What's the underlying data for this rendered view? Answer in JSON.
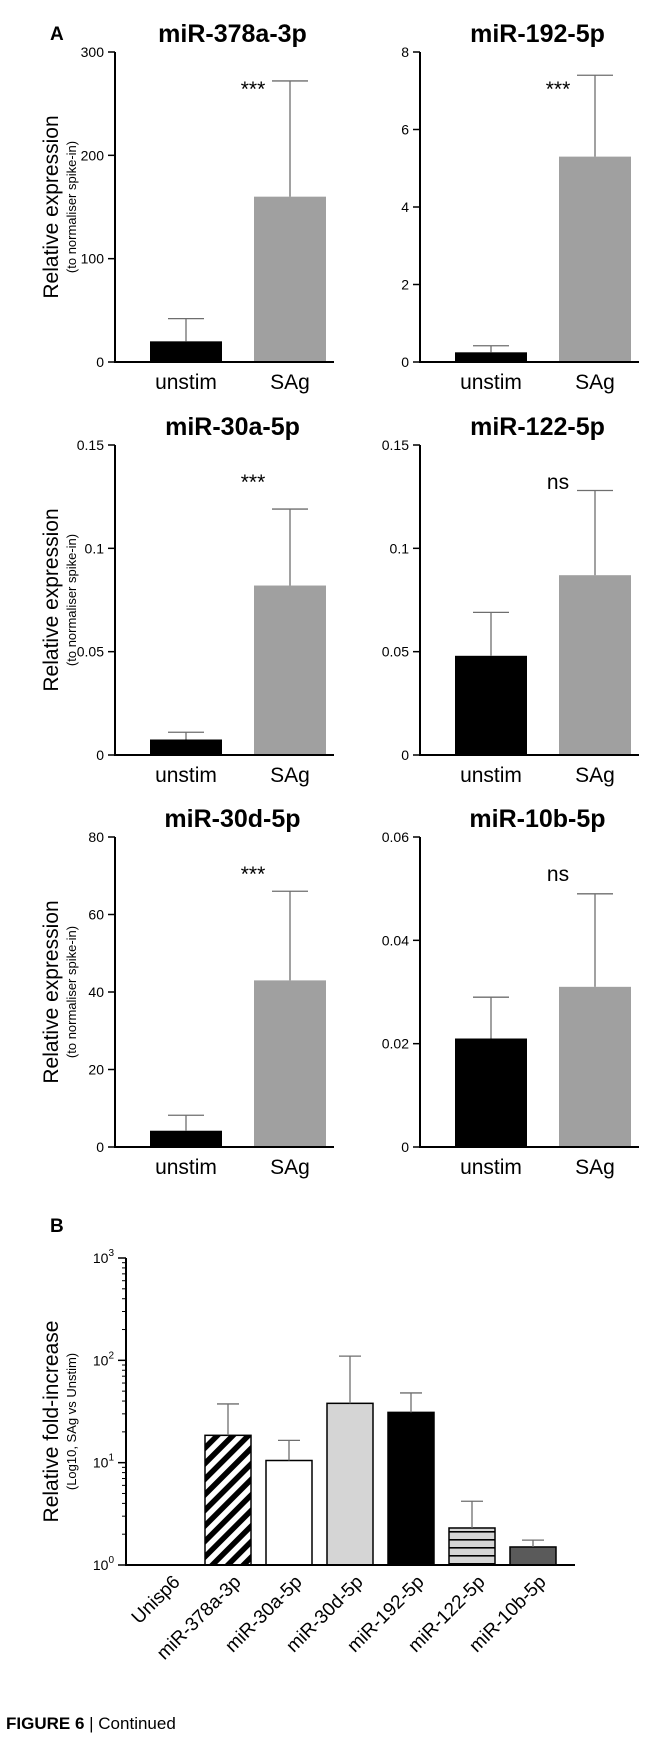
{
  "figure_caption": {
    "number": "FIGURE 6",
    "separator": " | ",
    "suffix": "Continued"
  },
  "panel_labels": {
    "a": "A",
    "b": "B"
  },
  "colors": {
    "unstim": "#000000",
    "sag": "#a0a0a0",
    "axis": "#000000",
    "error": "#6e6e6e",
    "b_light": "#d5d5d5",
    "b_dark": "#5a5a5a",
    "b_hatch": "#000000"
  },
  "panel_a_ylabel": {
    "main": "Relative expression",
    "sub": "(to normaliser spike-in)"
  },
  "panel_b_ylabel": {
    "main": "Relative fold-increase",
    "sub": "(Log10, SAg vs Unstim)"
  },
  "chart_data": [
    {
      "id": "miR-378a-3p",
      "type": "bar",
      "title": "miR-378a-3p",
      "categories": [
        "unstim",
        "SAg"
      ],
      "values": [
        20,
        160
      ],
      "errors": [
        22,
        112
      ],
      "ylim": [
        0,
        300
      ],
      "yticks": [
        "0",
        "100",
        "200",
        "300"
      ],
      "ytick_values": [
        0,
        100,
        200,
        300
      ],
      "annotation": "***"
    },
    {
      "id": "miR-192-5p",
      "type": "bar",
      "title": "miR-192-5p",
      "categories": [
        "unstim",
        "SAg"
      ],
      "values": [
        0.25,
        5.3
      ],
      "errors": [
        0.17,
        2.1
      ],
      "ylim": [
        0,
        8
      ],
      "yticks": [
        "0",
        "2",
        "4",
        "6",
        "8"
      ],
      "ytick_values": [
        0,
        2,
        4,
        6,
        8
      ],
      "annotation": "***"
    },
    {
      "id": "miR-30a-5p",
      "type": "bar",
      "title": "miR-30a-5p",
      "categories": [
        "unstim",
        "SAg"
      ],
      "values": [
        0.0075,
        0.082
      ],
      "errors": [
        0.0035,
        0.037
      ],
      "ylim": [
        0,
        0.15
      ],
      "yticks": [
        "0",
        "0.05",
        "0.1",
        "0.15"
      ],
      "ytick_values": [
        0,
        0.05,
        0.1,
        0.15
      ],
      "annotation": "***"
    },
    {
      "id": "miR-122-5p",
      "type": "bar",
      "title": "miR-122-5p",
      "categories": [
        "unstim",
        "SAg"
      ],
      "values": [
        0.048,
        0.087
      ],
      "errors": [
        0.021,
        0.041
      ],
      "ylim": [
        0,
        0.15
      ],
      "yticks": [
        "0",
        "0.05",
        "0.1",
        "0.15"
      ],
      "ytick_values": [
        0,
        0.05,
        0.1,
        0.15
      ],
      "annotation": "ns"
    },
    {
      "id": "miR-30d-5p",
      "type": "bar",
      "title": "miR-30d-5p",
      "categories": [
        "unstim",
        "SAg"
      ],
      "values": [
        4.2,
        43
      ],
      "errors": [
        4,
        23
      ],
      "ylim": [
        0,
        80
      ],
      "yticks": [
        "0",
        "20",
        "40",
        "60",
        "80"
      ],
      "ytick_values": [
        0,
        20,
        40,
        60,
        80
      ],
      "annotation": "***"
    },
    {
      "id": "miR-10b-5p",
      "type": "bar",
      "title": "miR-10b-5p",
      "categories": [
        "unstim",
        "SAg"
      ],
      "values": [
        0.021,
        0.031
      ],
      "errors": [
        0.008,
        0.018
      ],
      "ylim": [
        0,
        0.06
      ],
      "yticks": [
        "0",
        "0.02",
        "0.04",
        "0.06"
      ],
      "ytick_values": [
        0,
        0.02,
        0.04,
        0.06
      ],
      "annotation": "ns"
    },
    {
      "id": "fold-increase",
      "type": "bar",
      "yscale": "log",
      "categories": [
        "Unisp6",
        "miR-378a-3p",
        "miR-30a-5p",
        "miR-30d-5p",
        "miR-192-5p",
        "miR-122-5p",
        "miR-10b-5p"
      ],
      "values": [
        1,
        18.5,
        10.5,
        38,
        31,
        2.3,
        1.5
      ],
      "errors": [
        0,
        19,
        6,
        72,
        17,
        1.9,
        0.25
      ],
      "patterns": [
        "none",
        "diagonal-hatch",
        "white",
        "light-gray",
        "black",
        "horizontal-lines",
        "dark-gray"
      ],
      "ylim": [
        1,
        1000
      ],
      "ytick_values": [
        1,
        10,
        100,
        1000
      ],
      "yticks": [
        {
          "base": "10",
          "exp": "0"
        },
        {
          "base": "10",
          "exp": "1"
        },
        {
          "base": "10",
          "exp": "2"
        },
        {
          "base": "10",
          "exp": "3"
        }
      ]
    }
  ]
}
